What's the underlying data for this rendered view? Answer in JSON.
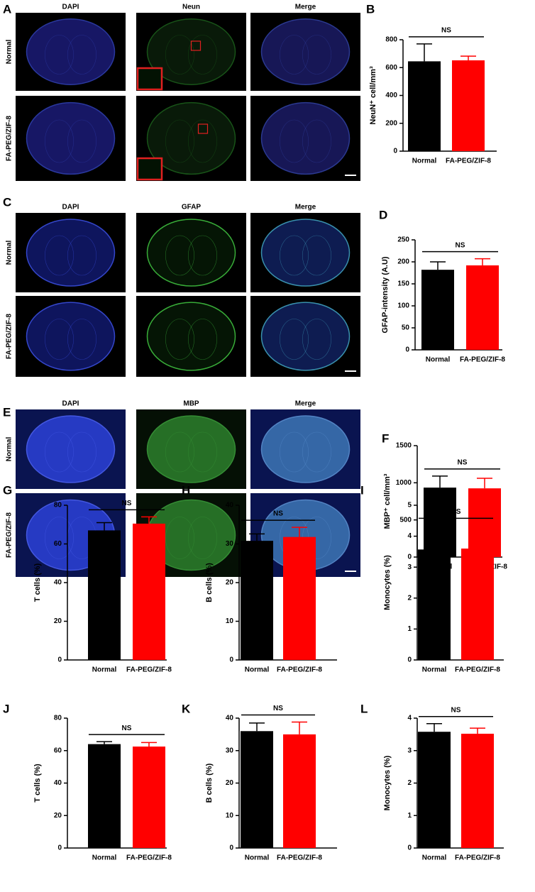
{
  "image_panels": [
    {
      "label": "A",
      "columns": [
        "DAPI",
        "Neun",
        "Merge"
      ],
      "rows": [
        "Normal",
        "FA-PEG/ZIF-8"
      ]
    },
    {
      "label": "C",
      "columns": [
        "DAPI",
        "GFAP",
        "Merge"
      ],
      "rows": [
        "Normal",
        "FA-PEG/ZIF-8"
      ]
    },
    {
      "label": "E",
      "columns": [
        "DAPI",
        "MBP",
        "Merge"
      ],
      "rows": [
        "Normal",
        "FA-PEG/ZIF-8"
      ]
    }
  ],
  "chart_data": [
    {
      "type": "bar",
      "panel": "B",
      "ylabel": "NeuN⁺ cell/mm³",
      "categories": [
        "Normal",
        "FA-PEG/ZIF-8"
      ],
      "values": [
        645,
        652
      ],
      "errors": [
        125,
        30
      ],
      "colors": [
        "#000000",
        "#ff0000"
      ],
      "ylim": [
        0,
        800
      ],
      "yticks": [
        0,
        200,
        400,
        600,
        800
      ],
      "annotation": "NS"
    },
    {
      "type": "bar",
      "panel": "D",
      "ylabel": "GFAP-intensity (A.U)",
      "categories": [
        "Normal",
        "FA-PEG/ZIF-8"
      ],
      "values": [
        182,
        192
      ],
      "errors": [
        18,
        15
      ],
      "colors": [
        "#000000",
        "#ff0000"
      ],
      "ylim": [
        0,
        250
      ],
      "yticks": [
        0,
        50,
        100,
        150,
        200,
        250
      ],
      "annotation": "NS"
    },
    {
      "type": "bar",
      "panel": "F",
      "ylabel": "MBP⁺ cell/mm³",
      "categories": [
        "Normal",
        "FA-PEG/ZIF-8"
      ],
      "values": [
        935,
        925
      ],
      "errors": [
        155,
        135
      ],
      "colors": [
        "#000000",
        "#ff0000"
      ],
      "ylim": [
        0,
        1500
      ],
      "yticks": [
        0,
        500,
        1000,
        1500
      ],
      "annotation": "NS"
    },
    {
      "type": "bar",
      "panel": "G",
      "ylabel": "T cells (%)",
      "categories": [
        "Normal",
        "FA-PEG/ZIF-8"
      ],
      "values": [
        67,
        70.5
      ],
      "errors": [
        4,
        3.5
      ],
      "colors": [
        "#000000",
        "#ff0000"
      ],
      "ylim": [
        0,
        80
      ],
      "yticks": [
        0,
        20,
        40,
        60,
        80
      ],
      "annotation": "NS"
    },
    {
      "type": "bar",
      "panel": "H",
      "ylabel": "B cells (%)",
      "categories": [
        "Normal",
        "FA-PEG/ZIF-8"
      ],
      "values": [
        30.8,
        31.8
      ],
      "errors": [
        1.8,
        2.5
      ],
      "colors": [
        "#000000",
        "#ff0000"
      ],
      "ylim": [
        0,
        40
      ],
      "yticks": [
        0,
        10,
        20,
        30,
        40
      ],
      "annotation": "NS"
    },
    {
      "type": "bar",
      "panel": "I",
      "ylabel": "Monocytes (%)",
      "categories": [
        "Normal",
        "FA-PEG/ZIF-8"
      ],
      "values": [
        3.57,
        3.6
      ],
      "errors": [
        0.57,
        0.75
      ],
      "colors": [
        "#000000",
        "#ff0000"
      ],
      "ylim": [
        0,
        5
      ],
      "yticks": [
        0,
        1,
        2,
        3,
        4,
        5
      ],
      "annotation": "NS"
    },
    {
      "type": "bar",
      "panel": "J",
      "ylabel": "T cells (%)",
      "categories": [
        "Normal",
        "FA-PEG/ZIF-8"
      ],
      "values": [
        64,
        62.5
      ],
      "errors": [
        1.5,
        2.5
      ],
      "colors": [
        "#000000",
        "#ff0000"
      ],
      "ylim": [
        0,
        80
      ],
      "yticks": [
        0,
        20,
        40,
        60,
        80
      ],
      "annotation": "NS"
    },
    {
      "type": "bar",
      "panel": "K",
      "ylabel": "B cells (%)",
      "categories": [
        "Normal",
        "FA-PEG/ZIF-8"
      ],
      "values": [
        36,
        35
      ],
      "errors": [
        2.5,
        3.8
      ],
      "colors": [
        "#000000",
        "#ff0000"
      ],
      "ylim": [
        0,
        40
      ],
      "yticks": [
        0,
        10,
        20,
        30,
        40
      ],
      "annotation": "NS"
    },
    {
      "type": "bar",
      "panel": "L",
      "ylabel": "Monocytes (%)",
      "categories": [
        "Normal",
        "FA-PEG/ZIF-8"
      ],
      "values": [
        3.58,
        3.52
      ],
      "errors": [
        0.25,
        0.17
      ],
      "colors": [
        "#000000",
        "#ff0000"
      ],
      "ylim": [
        0,
        4
      ],
      "yticks": [
        0,
        1,
        2,
        3,
        4
      ],
      "annotation": "NS"
    }
  ]
}
